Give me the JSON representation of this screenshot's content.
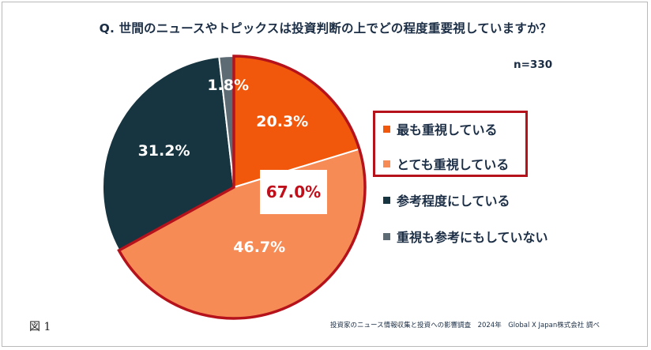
{
  "chart_data": {
    "type": "pie",
    "title": "Q. 世間のニュースやトピックスは投資判断の上でどの程度重要視していますか？",
    "n_label": "n=330",
    "slices": [
      {
        "label": "最も重視している",
        "value": 20.3,
        "display": "20.3%",
        "color": "#f2580c"
      },
      {
        "label": "とても重視している",
        "value": 46.7,
        "display": "46.7%",
        "color": "#f68b56"
      },
      {
        "label": "参考程度にしている",
        "value": 31.2,
        "display": "31.2%",
        "color": "#173540"
      },
      {
        "label": "重視も参考にもしていない",
        "value": 1.8,
        "display": "1.8%",
        "color": "#5d6b74"
      }
    ],
    "highlight": {
      "display": "67.0%",
      "value": 67.0,
      "color": "#b5121b"
    },
    "legend_position": "right"
  },
  "figure_label": "図 1",
  "source": "投資家のニュース情報収集と投資への影響調査　2024年　Global X Japan株式会社 調べ"
}
